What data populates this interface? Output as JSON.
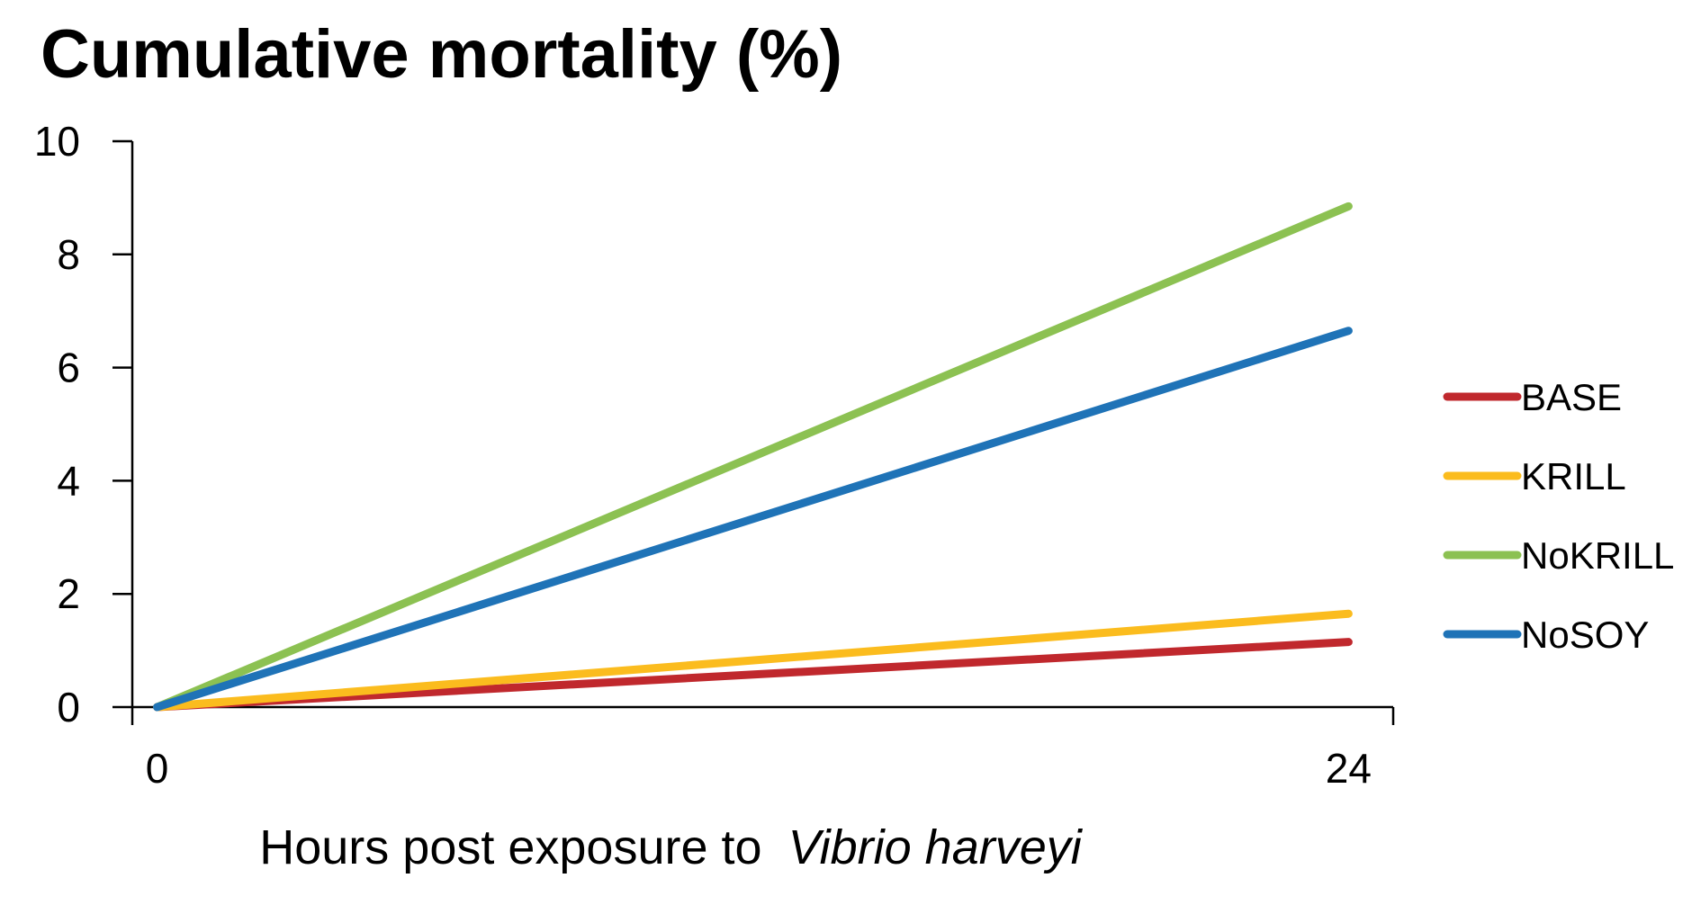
{
  "chart_data": {
    "type": "line",
    "title": "Cumulative mortality (%)",
    "xlabel": "Hours post exposure to",
    "xlabel_italic": "Vibrio harveyi",
    "ylabel": "",
    "x": [
      0,
      24
    ],
    "x_ticks": [
      0,
      24
    ],
    "xlim": [
      -0.5,
      24.9
    ],
    "ylim": [
      0,
      10
    ],
    "y_ticks": [
      0,
      2,
      4,
      6,
      8,
      10
    ],
    "grid": false,
    "legend_position": "right",
    "series": [
      {
        "name": "BASE",
        "values": [
          0,
          1.15
        ],
        "color": "#C0282D"
      },
      {
        "name": "KRILL",
        "values": [
          0,
          1.65
        ],
        "color": "#FBBC1E"
      },
      {
        "name": "NoKRILL",
        "values": [
          0,
          8.85
        ],
        "color": "#8CC152"
      },
      {
        "name": "NoSOY",
        "values": [
          0,
          6.65
        ],
        "color": "#1F73B7"
      }
    ]
  }
}
